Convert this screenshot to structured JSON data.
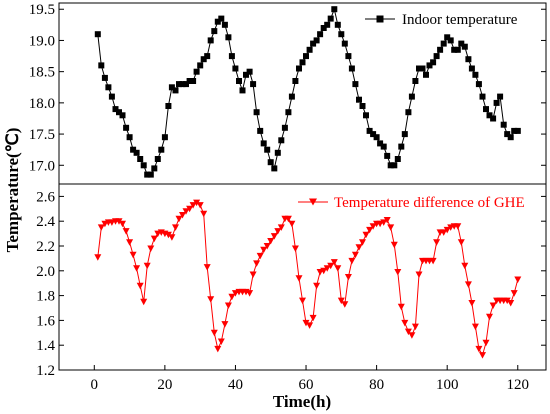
{
  "chart_data": [
    {
      "type": "line",
      "panel": "top",
      "ylim": [
        16.7,
        19.6
      ],
      "xlim": [
        -10,
        128
      ],
      "yticks": [
        17.0,
        17.5,
        18.0,
        18.5,
        19.0,
        19.5
      ],
      "series": [
        {
          "name": "Indoor temperature",
          "color": "#000000",
          "marker": "square",
          "x": [
            1,
            2,
            3,
            4,
            5,
            6,
            7,
            8,
            9,
            10,
            11,
            12,
            13,
            14,
            15,
            16,
            17,
            18,
            19,
            20,
            21,
            22,
            23,
            24,
            25,
            26,
            27,
            28,
            29,
            30,
            31,
            32,
            33,
            34,
            35,
            36,
            37,
            38,
            39,
            40,
            41,
            42,
            43,
            44,
            45,
            46,
            47,
            48,
            49,
            50,
            51,
            52,
            53,
            54,
            55,
            56,
            57,
            58,
            59,
            60,
            61,
            62,
            63,
            64,
            65,
            66,
            67,
            68,
            69,
            70,
            71,
            72,
            73,
            74,
            75,
            76,
            77,
            78,
            79,
            80,
            81,
            82,
            83,
            84,
            85,
            86,
            87,
            88,
            89,
            90,
            91,
            92,
            93,
            94,
            95,
            96,
            97,
            98,
            99,
            100,
            101,
            102,
            103,
            104,
            105,
            106,
            107,
            108,
            109,
            110,
            111,
            112,
            113,
            114,
            115,
            116,
            117,
            118,
            119,
            120
          ],
          "y": [
            19.1,
            18.6,
            18.4,
            18.25,
            18.1,
            17.9,
            17.85,
            17.8,
            17.6,
            17.45,
            17.25,
            17.2,
            17.1,
            17.0,
            16.85,
            16.85,
            16.95,
            17.1,
            17.25,
            17.45,
            17.95,
            18.25,
            18.2,
            18.3,
            18.3,
            18.3,
            18.35,
            18.35,
            18.5,
            18.6,
            18.7,
            18.75,
            19.0,
            19.15,
            19.3,
            19.35,
            19.25,
            19.05,
            18.75,
            18.55,
            18.35,
            18.2,
            18.45,
            18.5,
            18.3,
            17.85,
            17.55,
            17.35,
            17.25,
            17.05,
            16.95,
            17.2,
            17.4,
            17.6,
            17.85,
            18.1,
            18.35,
            18.55,
            18.65,
            18.75,
            18.85,
            18.95,
            19.0,
            19.1,
            19.2,
            19.25,
            19.35,
            19.5,
            19.25,
            19.1,
            18.95,
            18.75,
            18.55,
            18.3,
            18.05,
            17.95,
            17.8,
            17.55,
            17.5,
            17.45,
            17.35,
            17.3,
            17.15,
            17.0,
            17.0,
            17.1,
            17.3,
            17.5,
            17.85,
            18.1,
            18.35,
            18.55,
            18.55,
            18.45,
            18.6,
            18.65,
            18.75,
            18.85,
            18.95,
            19.05,
            19.0,
            18.85,
            18.85,
            18.95,
            18.9,
            18.7,
            18.55,
            18.45,
            18.3,
            18.1,
            17.9,
            17.8,
            17.75,
            18.0,
            18.1,
            17.65,
            17.5,
            17.45,
            17.55,
            17.55
          ]
        }
      ]
    },
    {
      "type": "line",
      "panel": "bottom",
      "xlabel": "Time(h)",
      "ylabel": "Temperature(℃)",
      "ylim": [
        1.2,
        2.7
      ],
      "xlim": [
        -10,
        128
      ],
      "yticks": [
        1.2,
        1.4,
        1.6,
        1.8,
        2.0,
        2.2,
        2.4,
        2.6
      ],
      "xticks": [
        0,
        20,
        40,
        60,
        80,
        100,
        120
      ],
      "series": [
        {
          "name": "Temperature difference of GHE",
          "color": "#ff0000",
          "marker": "triangle-down",
          "x": [
            1,
            2,
            3,
            4,
            5,
            6,
            7,
            8,
            9,
            10,
            11,
            12,
            13,
            14,
            15,
            16,
            17,
            18,
            19,
            20,
            21,
            22,
            23,
            24,
            25,
            26,
            27,
            28,
            29,
            30,
            31,
            32,
            33,
            34,
            35,
            36,
            37,
            38,
            39,
            40,
            41,
            42,
            43,
            44,
            45,
            46,
            47,
            48,
            49,
            50,
            51,
            52,
            53,
            54,
            55,
            56,
            57,
            58,
            59,
            60,
            61,
            62,
            63,
            64,
            65,
            66,
            67,
            68,
            69,
            70,
            71,
            72,
            73,
            74,
            75,
            76,
            77,
            78,
            79,
            80,
            81,
            82,
            83,
            84,
            85,
            86,
            87,
            88,
            89,
            90,
            91,
            92,
            93,
            94,
            95,
            96,
            97,
            98,
            99,
            100,
            101,
            102,
            103,
            104,
            105,
            106,
            107,
            108,
            109,
            110,
            111,
            112,
            113,
            114,
            115,
            116,
            117,
            118,
            119,
            120
          ],
          "y": [
            2.11,
            2.35,
            2.38,
            2.39,
            2.39,
            2.4,
            2.4,
            2.38,
            2.32,
            2.23,
            2.13,
            2.02,
            1.88,
            1.75,
            2.04,
            2.18,
            2.26,
            2.3,
            2.31,
            2.3,
            2.29,
            2.27,
            2.35,
            2.42,
            2.45,
            2.48,
            2.5,
            2.53,
            2.55,
            2.53,
            2.46,
            2.03,
            1.77,
            1.5,
            1.37,
            1.43,
            1.57,
            1.72,
            1.79,
            1.82,
            1.83,
            1.83,
            1.83,
            1.82,
            1.97,
            2.06,
            2.12,
            2.17,
            2.2,
            2.24,
            2.28,
            2.32,
            2.35,
            2.42,
            2.42,
            2.38,
            2.18,
            1.94,
            1.76,
            1.58,
            1.56,
            1.62,
            1.88,
            1.99,
            2.0,
            2.02,
            2.04,
            2.07,
            2.02,
            1.76,
            1.73,
            1.95,
            2.08,
            2.13,
            2.19,
            2.23,
            2.29,
            2.33,
            2.36,
            2.38,
            2.38,
            2.39,
            2.41,
            2.35,
            2.21,
            1.99,
            1.71,
            1.58,
            1.51,
            1.48,
            1.55,
            1.97,
            2.08,
            2.08,
            2.08,
            2.08,
            2.23,
            2.31,
            2.31,
            2.33,
            2.35,
            2.36,
            2.36,
            2.23,
            2.04,
            1.89,
            1.74,
            1.55,
            1.37,
            1.32,
            1.42,
            1.63,
            1.72,
            1.76,
            1.76,
            1.76,
            1.76,
            1.74,
            1.82,
            1.93
          ]
        }
      ]
    }
  ]
}
